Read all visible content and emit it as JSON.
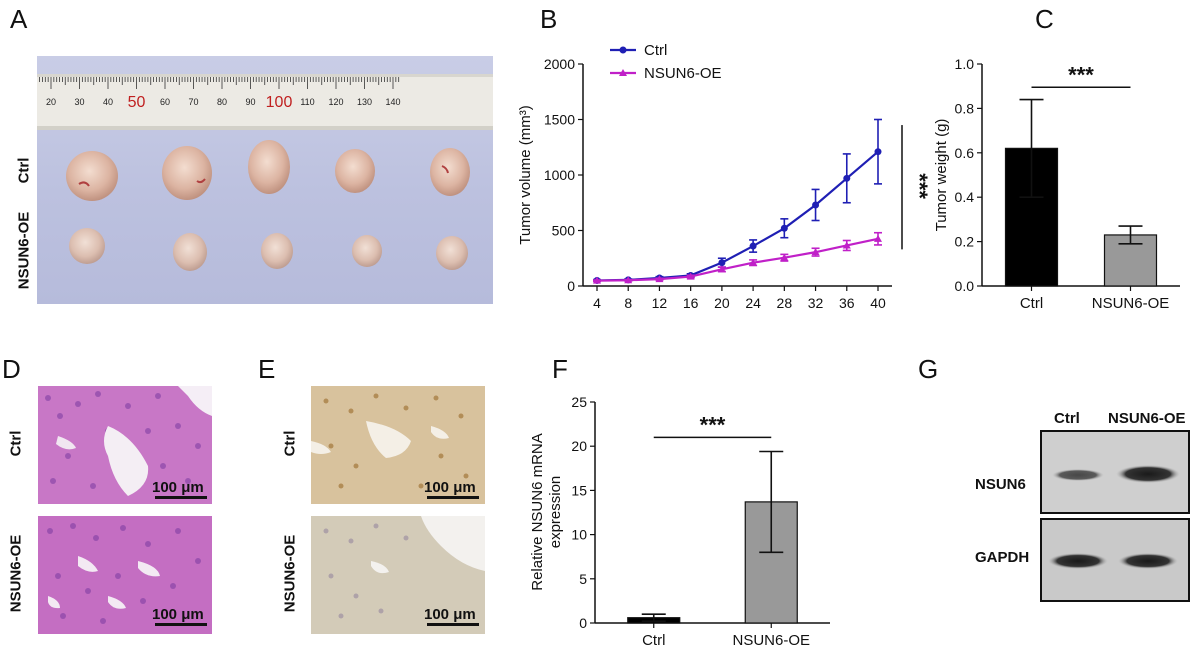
{
  "panels": {
    "a": {
      "letter": "A",
      "row_labels": [
        "Ctrl",
        "NSUN6-OE"
      ],
      "ruler_labels": [
        "20",
        "30",
        "40",
        "50",
        "60",
        "70",
        "80",
        "90",
        "100",
        "110",
        "120",
        "130",
        "140"
      ]
    },
    "d": {
      "letter": "D",
      "row_labels": [
        "Ctrl",
        "NSUN6-OE"
      ],
      "scale_labels": [
        "100 μm",
        "100 μm"
      ]
    },
    "e": {
      "letter": "E",
      "row_labels": [
        "Ctrl",
        "NSUN6-OE"
      ],
      "scale_labels": [
        "100 μm",
        "100 μm"
      ]
    },
    "g": {
      "letter": "G",
      "lanes": [
        "Ctrl",
        "NSUN6-OE"
      ],
      "bands": [
        "NSUN6",
        "GAPDH"
      ]
    }
  },
  "chart_data": [
    {
      "panel": "B",
      "type": "line",
      "ylabel": "Tumor volume (mm³)",
      "x": [
        4,
        8,
        12,
        16,
        20,
        24,
        28,
        32,
        36,
        40
      ],
      "ylim": [
        0,
        2000
      ],
      "yticks": [
        0,
        500,
        1000,
        1500,
        2000
      ],
      "series": [
        {
          "name": "Ctrl",
          "color": "#1f1fb4",
          "values": [
            50,
            55,
            72,
            95,
            210,
            360,
            520,
            730,
            970,
            1210
          ],
          "errors": [
            8,
            8,
            12,
            15,
            40,
            55,
            85,
            140,
            220,
            290
          ]
        },
        {
          "name": "NSUN6-OE",
          "color": "#c020c8",
          "values": [
            48,
            52,
            62,
            85,
            150,
            210,
            255,
            305,
            365,
            425
          ],
          "errors": [
            6,
            6,
            8,
            12,
            20,
            25,
            30,
            35,
            45,
            55
          ]
        }
      ],
      "legend": "top-left",
      "annotation": "***"
    },
    {
      "panel": "C",
      "type": "bar",
      "ylabel": "Tumor weight (g)",
      "categories": [
        "Ctrl",
        "NSUN6-OE"
      ],
      "values": [
        0.62,
        0.23
      ],
      "errors": [
        0.22,
        0.04
      ],
      "colors": [
        "#000000",
        "#999999"
      ],
      "ylim": [
        0,
        1.0
      ],
      "yticks": [
        "0.0",
        "0.2",
        "0.4",
        "0.6",
        "0.8",
        "1.0"
      ],
      "annotation": "***"
    },
    {
      "panel": "F",
      "type": "bar",
      "ylabel": [
        "Relative NSUN6 mRNA",
        "expression"
      ],
      "categories": [
        "Ctrl",
        "NSUN6-OE"
      ],
      "values": [
        0.6,
        13.7
      ],
      "errors": [
        0.4,
        5.7
      ],
      "colors": [
        "#000000",
        "#999999"
      ],
      "ylim": [
        0,
        25
      ],
      "yticks": [
        0,
        5,
        10,
        15,
        20,
        25
      ],
      "annotation": "***"
    }
  ]
}
